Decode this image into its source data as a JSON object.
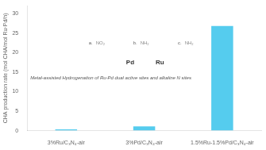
{
  "chart_data": {
    "type": "bar",
    "categories": [
      "3%Ru/C₃N₄-air",
      "3%Pd/C₃N₄-air",
      "1.5%Ru-1.5%Pd/C₃N₄-air"
    ],
    "values": [
      0.35,
      1.1,
      26.8
    ],
    "color": "#55ccee",
    "ylabel": "CHA production rate (mol CHA/mol Ru·Pd/h)",
    "ylim": [
      0,
      32
    ],
    "yticks": [
      0,
      5,
      10,
      15,
      20,
      25,
      30
    ],
    "grid": false,
    "annotations": [
      "Metal-assisted Hydrogenation of Ru-Pd dual active sites and alkaline N sites",
      "Pd",
      "Ru",
      "a.",
      "NO₂",
      "b.",
      "NH₂",
      "c.",
      "NH₂"
    ]
  }
}
